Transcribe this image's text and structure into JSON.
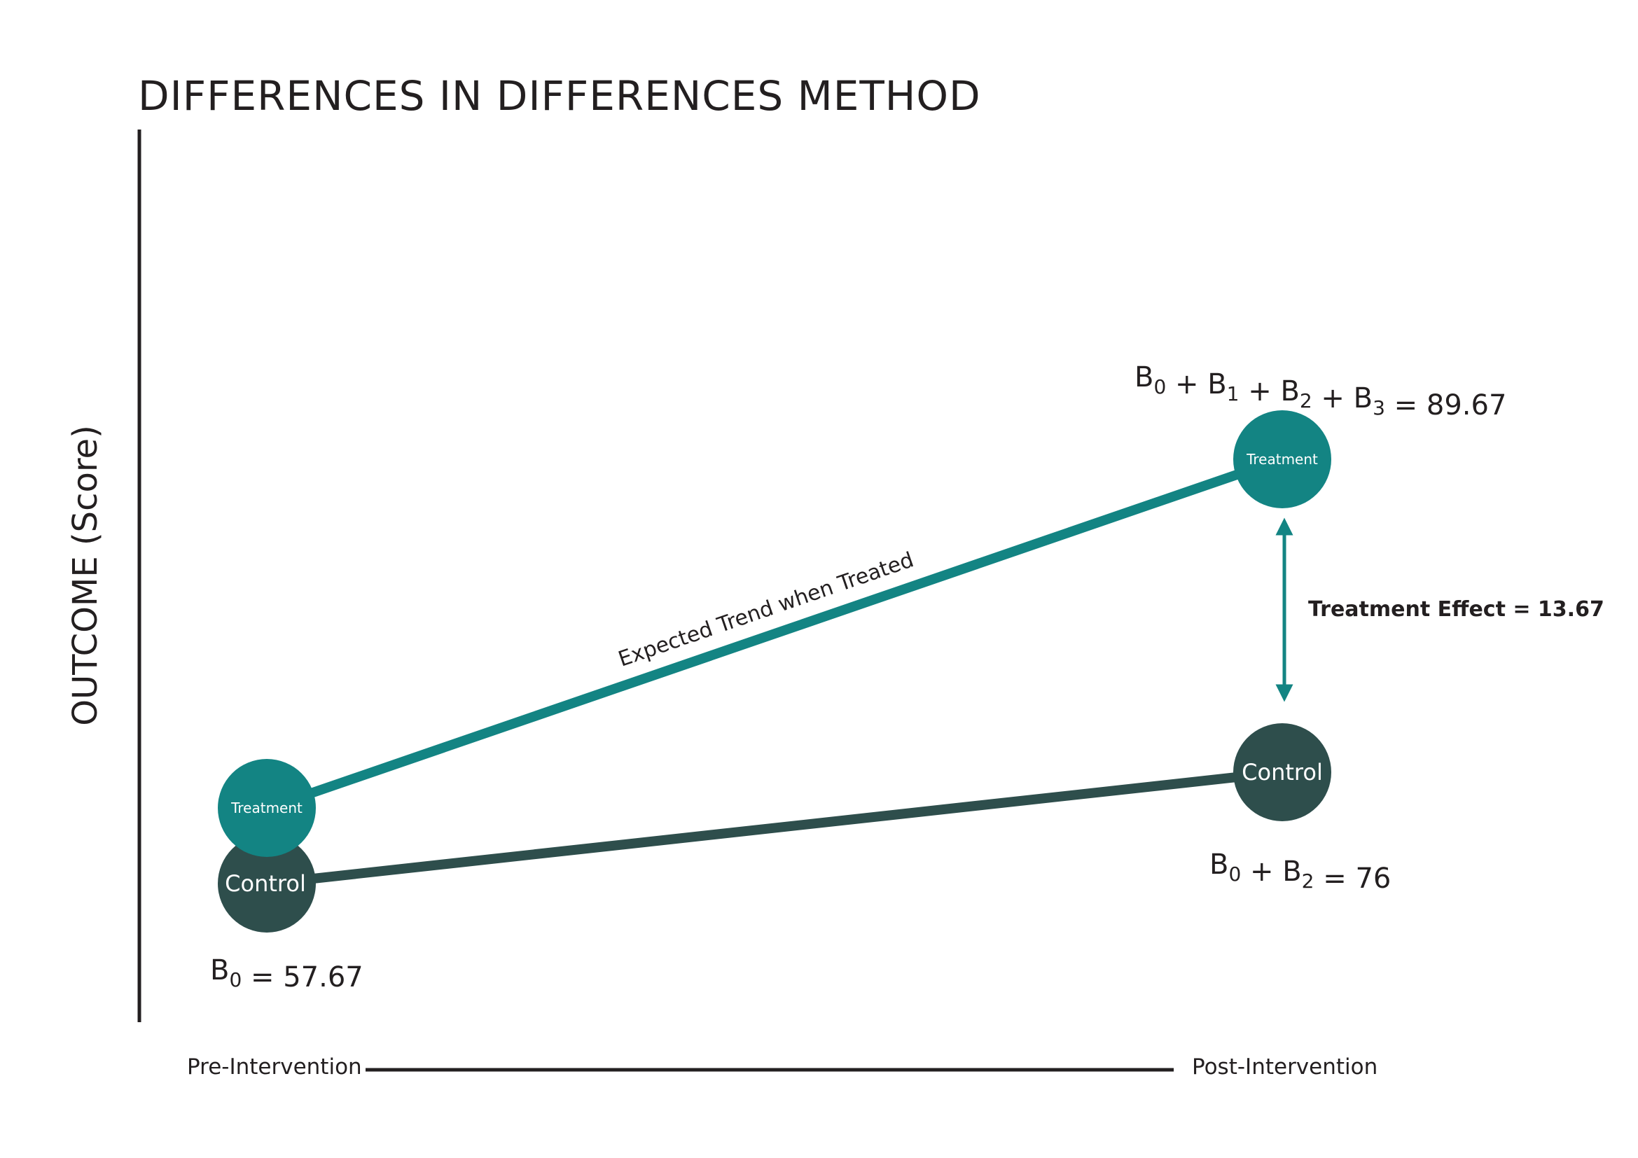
{
  "title": "DIFFERENCES IN DIFFERENCES METHOD",
  "y_axis_label": "OUTCOME (Score)",
  "x_axis": {
    "start_label": "Pre-Intervention",
    "end_label": "Post-Intervention"
  },
  "colors": {
    "treatment": "#138483",
    "control": "#2e4e4c",
    "text": "#231f20",
    "axis": "#231f20",
    "node_text": "#ffffff"
  },
  "nodes": {
    "treatment_pre": {
      "label": "Treatment"
    },
    "control_pre": {
      "label": "Control"
    },
    "treatment_post": {
      "label": "Treatment"
    },
    "control_post": {
      "label": "Control"
    }
  },
  "formulas": {
    "pre": {
      "parts": [
        {
          "text": "B",
          "sub": "0"
        },
        {
          "text": " = 57.67"
        }
      ],
      "value": 57.67
    },
    "treatment_post": {
      "parts": [
        {
          "text": "B",
          "sub": "0"
        },
        {
          "text": " + B",
          "sub": "1"
        },
        {
          "text": " + B",
          "sub": "2"
        },
        {
          "text": "  + B",
          "sub": "3"
        },
        {
          "text": " = 89.67"
        }
      ],
      "value": 89.67
    },
    "control_post": {
      "parts": [
        {
          "text": "B",
          "sub": "0"
        },
        {
          "text": " + B",
          "sub": "2"
        },
        {
          "text": " = 76"
        }
      ],
      "value": 76
    }
  },
  "trend_label": "Expected Trend when Treated",
  "effect_label": "Treatment Effect = 13.67",
  "treatment_effect": 13.67
}
